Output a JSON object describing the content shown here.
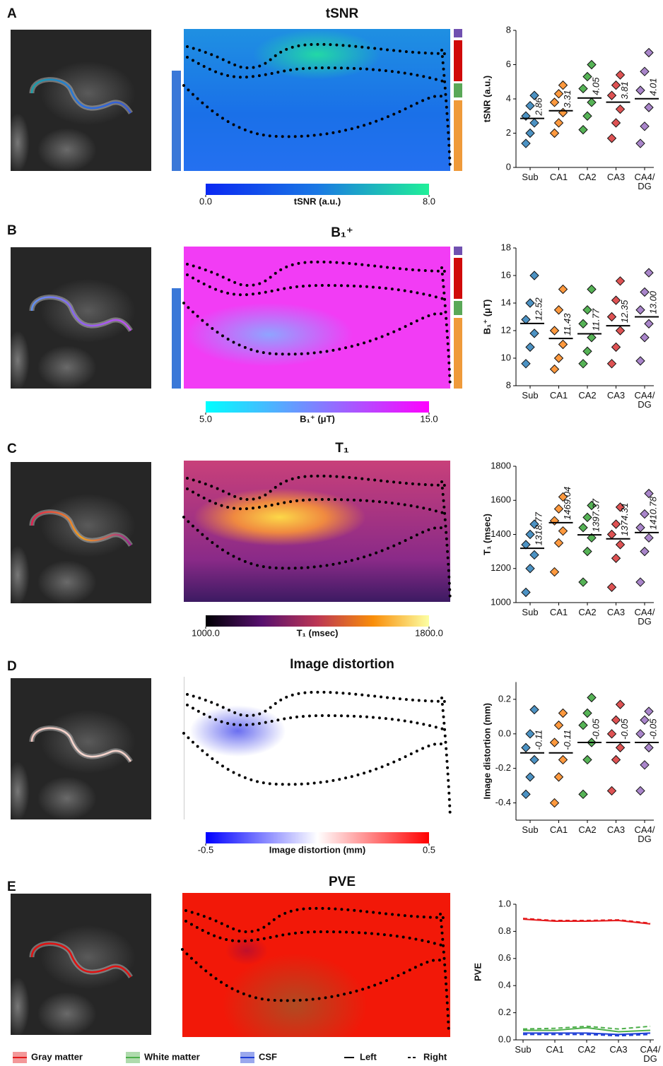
{
  "chart_data": [
    {
      "type": "strip",
      "panel": "A",
      "title": "tSNR",
      "ylabel": "tSNR (a.u.)",
      "categories": [
        "Sub",
        "CA1",
        "CA2",
        "CA3",
        "CA4/\nDG"
      ],
      "values": [
        2.86,
        3.31,
        4.05,
        3.81,
        4.01
      ],
      "value_labels": [
        "2.86",
        "3.31",
        "4.05",
        "3.81",
        "4.01"
      ],
      "points": [
        [
          1.4,
          2.0,
          2.6,
          3.0,
          3.6,
          4.2
        ],
        [
          2.0,
          2.6,
          3.2,
          3.8,
          4.3,
          4.8
        ],
        [
          2.2,
          3.0,
          3.8,
          4.6,
          5.3,
          6.0
        ],
        [
          1.7,
          2.6,
          3.4,
          4.2,
          4.8,
          5.4
        ],
        [
          1.4,
          2.4,
          3.5,
          4.5,
          5.6,
          6.7
        ]
      ],
      "colors": [
        "#1f77b4",
        "#ff7f0e",
        "#2ca02c",
        "#d62728",
        "#9467bd"
      ],
      "ylim": [
        0,
        8
      ],
      "yticks": [
        0,
        2,
        4,
        6,
        8
      ],
      "colorbar": {
        "label": "tSNR (a.u.)",
        "colors": [
          "#0a28f2",
          "#1a78e4",
          "#20f098"
        ],
        "ticks": [
          {
            "value": 0,
            "label": "0.0"
          },
          {
            "value": 8,
            "label": "8.0"
          }
        ]
      }
    },
    {
      "type": "strip",
      "panel": "B",
      "title": "B₁⁺",
      "ylabel": "B₁⁺ (μT)",
      "categories": [
        "Sub",
        "CA1",
        "CA2",
        "CA3",
        "CA4/\nDG"
      ],
      "values": [
        12.52,
        11.43,
        11.77,
        12.35,
        13.0
      ],
      "value_labels": [
        "12.52",
        "11.43",
        "11.77",
        "12.35",
        "13.00"
      ],
      "points": [
        [
          9.6,
          10.8,
          11.8,
          12.8,
          14.0,
          16.0
        ],
        [
          9.2,
          10.0,
          11.0,
          12.0,
          13.5,
          15.0
        ],
        [
          9.6,
          10.5,
          11.5,
          12.5,
          13.5,
          15.0
        ],
        [
          9.6,
          10.8,
          12.0,
          13.0,
          14.2,
          15.6
        ],
        [
          9.8,
          11.5,
          12.5,
          13.5,
          14.8,
          16.2
        ]
      ],
      "colors": [
        "#1f77b4",
        "#ff7f0e",
        "#2ca02c",
        "#d62728",
        "#9467bd"
      ],
      "ylim": [
        8,
        18
      ],
      "yticks": [
        8,
        10,
        12,
        14,
        16,
        18
      ],
      "colorbar": {
        "label": "B₁⁺ (μT)",
        "colors": [
          "#00ffff",
          "#8080ff",
          "#ff00ff"
        ],
        "ticks": [
          {
            "value": 5,
            "label": "5.0"
          },
          {
            "value": 15,
            "label": "15.0"
          }
        ]
      }
    },
    {
      "type": "strip",
      "panel": "C",
      "title": "T₁",
      "ylabel": "T₁ (msec)",
      "categories": [
        "Sub",
        "CA1",
        "CA2",
        "CA3",
        "CA4/\nDG"
      ],
      "values": [
        1318.77,
        1469.04,
        1397.37,
        1374.31,
        1410.78
      ],
      "value_labels": [
        "1318.77",
        "1469.04",
        "1397.37",
        "1374.31",
        "1410.78"
      ],
      "points": [
        [
          1060,
          1200,
          1280,
          1340,
          1400,
          1460
        ],
        [
          1180,
          1350,
          1420,
          1480,
          1550,
          1620
        ],
        [
          1120,
          1300,
          1380,
          1440,
          1500,
          1570
        ],
        [
          1090,
          1260,
          1340,
          1400,
          1460,
          1560
        ],
        [
          1120,
          1300,
          1380,
          1440,
          1520,
          1640
        ]
      ],
      "colors": [
        "#1f77b4",
        "#ff7f0e",
        "#2ca02c",
        "#d62728",
        "#9467bd"
      ],
      "ylim": [
        1000,
        1800
      ],
      "yticks": [
        1000,
        1200,
        1400,
        1600,
        1800
      ],
      "colorbar": {
        "label": "T₁ (msec)",
        "colors": [
          "#000004",
          "#57106e",
          "#bc3754",
          "#f98e09",
          "#fcffa4"
        ],
        "ticks": [
          {
            "value": 1000,
            "label": "1000.0"
          },
          {
            "value": 1800,
            "label": "1800.0"
          }
        ]
      }
    },
    {
      "type": "strip",
      "panel": "D",
      "title": "Image distortion",
      "ylabel": "Image distortion (mm)",
      "categories": [
        "Sub",
        "CA1",
        "CA2",
        "CA3",
        "CA4/\nDG"
      ],
      "values": [
        -0.11,
        -0.11,
        -0.05,
        -0.05,
        -0.05
      ],
      "value_labels": [
        "-0.11",
        "-0.11",
        "-0.05",
        "-0.05",
        "-0.05"
      ],
      "points": [
        [
          -0.35,
          -0.25,
          -0.15,
          -0.08,
          0.0,
          0.14
        ],
        [
          -0.4,
          -0.25,
          -0.15,
          -0.05,
          0.05,
          0.12
        ],
        [
          -0.35,
          -0.15,
          -0.05,
          0.05,
          0.12,
          0.21
        ],
        [
          -0.33,
          -0.15,
          -0.08,
          0.0,
          0.08,
          0.17
        ],
        [
          -0.33,
          -0.18,
          -0.08,
          0.0,
          0.08,
          0.13
        ]
      ],
      "colors": [
        "#1f77b4",
        "#ff7f0e",
        "#2ca02c",
        "#d62728",
        "#9467bd"
      ],
      "ylim": [
        -0.5,
        0.3
      ],
      "yticks": [
        -0.4,
        -0.2,
        {
          "value": 0,
          "label": "0.0"
        },
        0.2
      ],
      "colorbar": {
        "label": "Image distortion (mm)",
        "colors": [
          "#0000ff",
          "#ffffff",
          "#ff0000"
        ],
        "ticks": [
          -0.5,
          0.5
        ]
      }
    },
    {
      "type": "line",
      "panel": "E",
      "title": "PVE",
      "ylabel": "PVE",
      "categories": [
        "Sub",
        "CA1",
        "CA2",
        "CA3",
        "CA4/\nDG"
      ],
      "sides": [
        {
          "name": "Left",
          "dash": "none"
        },
        {
          "name": "Right",
          "dash": "6 4"
        }
      ],
      "series": [
        {
          "name": "Gray matter",
          "color": "#e41a1c",
          "values": [
            [
              0.89,
              0.875,
              0.875,
              0.88,
              0.855
            ],
            [
              0.895,
              0.88,
              0.88,
              0.885,
              0.86
            ]
          ]
        },
        {
          "name": "White matter",
          "color": "#4daf4a",
          "values": [
            [
              0.07,
              0.07,
              0.09,
              0.06,
              0.07
            ],
            [
              0.08,
              0.085,
              0.1,
              0.08,
              0.1
            ]
          ]
        },
        {
          "name": "CSF",
          "color": "#1f3fd6",
          "values": [
            [
              0.05,
              0.05,
              0.05,
              0.04,
              0.05
            ],
            [
              0.04,
              0.04,
              0.04,
              0.03,
              0.04
            ]
          ]
        }
      ],
      "ylim": [
        0,
        1.0
      ],
      "yticks": [
        {
          "value": 0,
          "label": "0.0"
        },
        0.2,
        0.4,
        0.6,
        0.8,
        {
          "value": 1.0,
          "label": "1.0"
        }
      ]
    }
  ]
}
